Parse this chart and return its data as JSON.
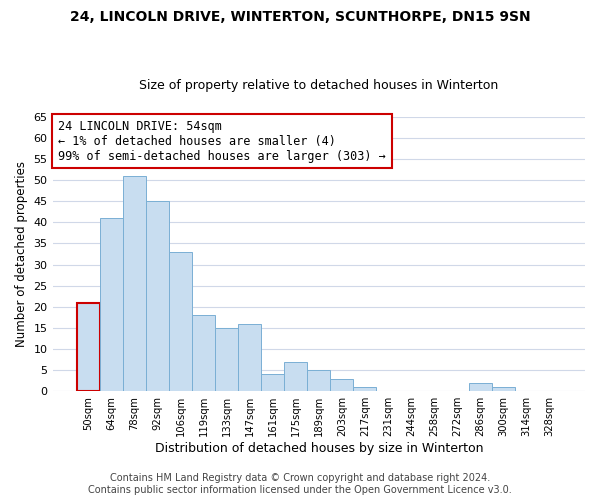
{
  "title": "24, LINCOLN DRIVE, WINTERTON, SCUNTHORPE, DN15 9SN",
  "subtitle": "Size of property relative to detached houses in Winterton",
  "xlabel": "Distribution of detached houses by size in Winterton",
  "ylabel": "Number of detached properties",
  "bar_labels": [
    "50sqm",
    "64sqm",
    "78sqm",
    "92sqm",
    "106sqm",
    "119sqm",
    "133sqm",
    "147sqm",
    "161sqm",
    "175sqm",
    "189sqm",
    "203sqm",
    "217sqm",
    "231sqm",
    "244sqm",
    "258sqm",
    "272sqm",
    "286sqm",
    "300sqm",
    "314sqm",
    "328sqm"
  ],
  "bar_values": [
    21,
    41,
    51,
    45,
    33,
    18,
    15,
    16,
    4,
    7,
    5,
    3,
    1,
    0,
    0,
    0,
    0,
    2,
    1,
    0,
    0
  ],
  "bar_color": "#c8ddf0",
  "bar_edge_color": "#7aafd4",
  "highlight_bar_index": 0,
  "highlight_edge_color": "#cc0000",
  "ylim": [
    0,
    65
  ],
  "yticks": [
    0,
    5,
    10,
    15,
    20,
    25,
    30,
    35,
    40,
    45,
    50,
    55,
    60,
    65
  ],
  "annotation_title": "24 LINCOLN DRIVE: 54sqm",
  "annotation_line1": "← 1% of detached houses are smaller (4)",
  "annotation_line2": "99% of semi-detached houses are larger (303) →",
  "background_color": "#ffffff",
  "plot_bg_color": "#ffffff",
  "grid_color": "#d0d8e8",
  "footer_line1": "Contains HM Land Registry data © Crown copyright and database right 2024.",
  "footer_line2": "Contains public sector information licensed under the Open Government Licence v3.0.",
  "title_fontsize": 10,
  "subtitle_fontsize": 9,
  "xlabel_fontsize": 9,
  "ylabel_fontsize": 8.5,
  "footer_fontsize": 7
}
